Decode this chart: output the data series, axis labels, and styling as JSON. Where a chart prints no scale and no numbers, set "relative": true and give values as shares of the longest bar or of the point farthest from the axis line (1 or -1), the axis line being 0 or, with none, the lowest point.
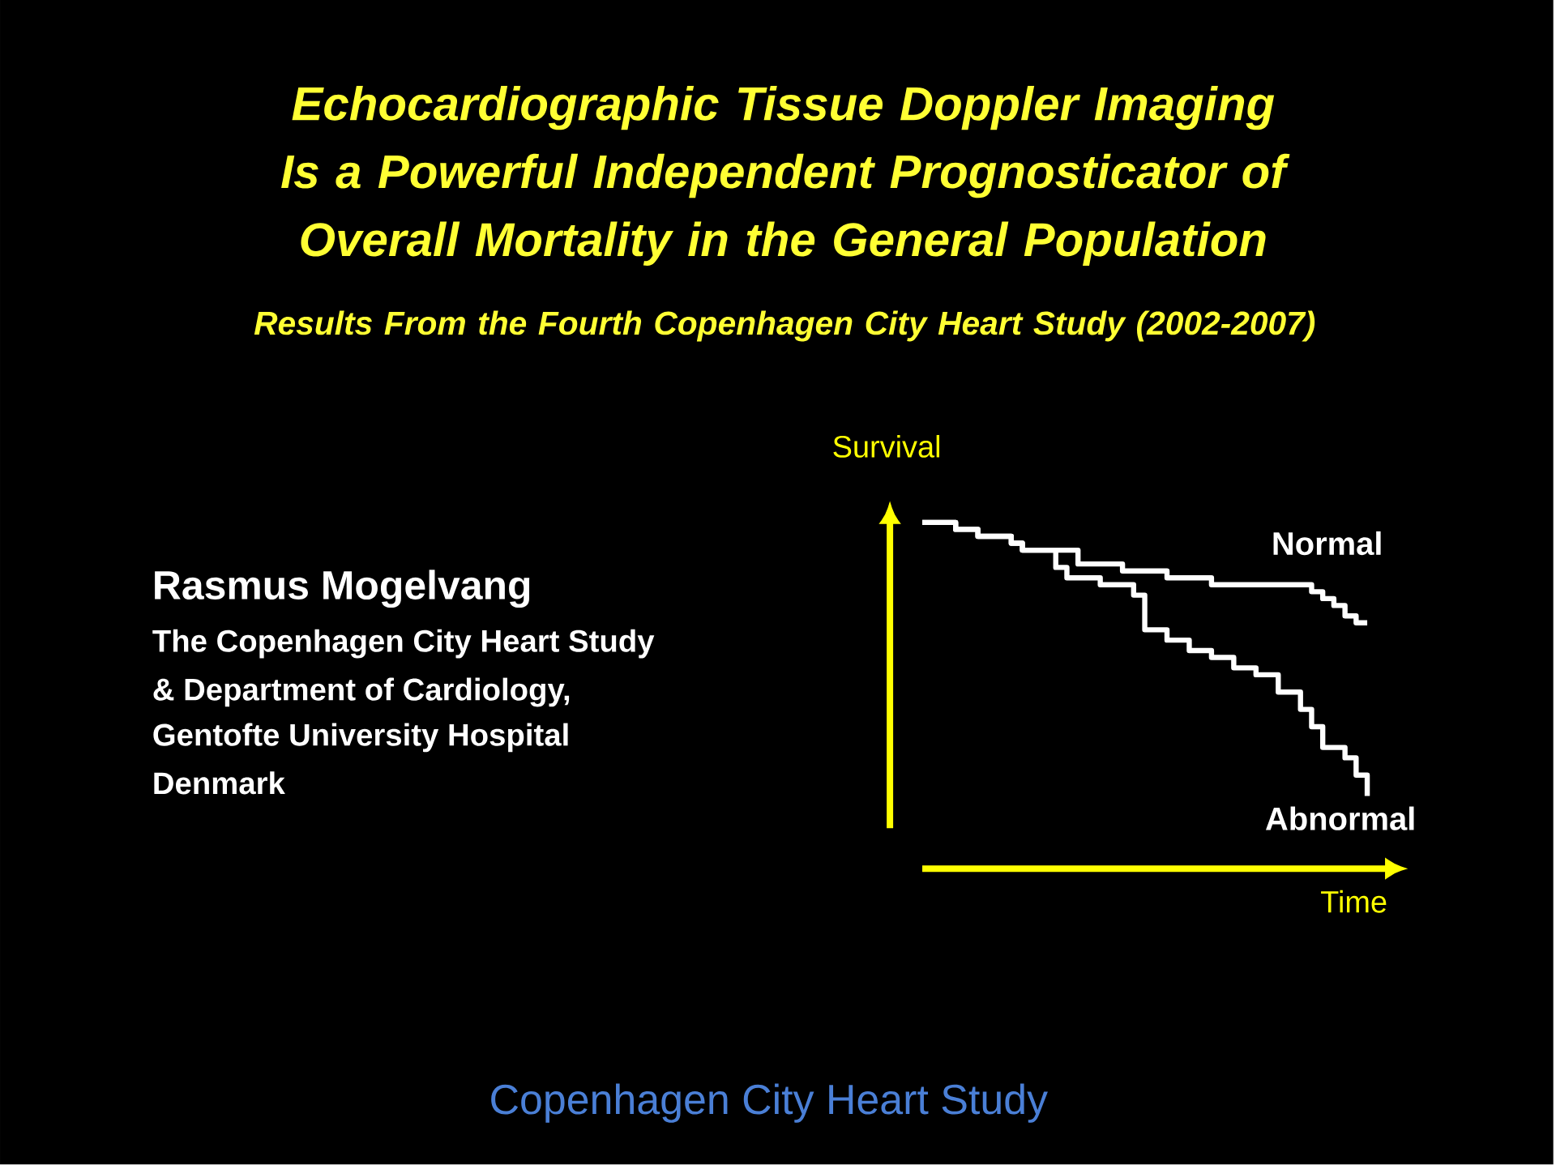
{
  "chart_data": {
    "type": "step",
    "relative": true,
    "title": "Echocardiographic Tissue Doppler Imaging Is a Powerful Independent Prognosticator of Overall Mortality in the General Population",
    "subtitle": "Results From the Fourth Copenhagen City Heart Study (2002-2007)",
    "xlabel": "Time",
    "ylabel": "Survival",
    "categories": [
      null,
      null,
      null,
      null,
      null,
      null,
      null,
      null,
      null,
      null,
      null,
      null,
      null,
      null,
      null,
      null,
      null,
      null,
      null,
      null,
      null,
      null,
      null,
      null,
      null,
      null,
      null,
      null,
      null,
      null,
      null,
      null,
      null,
      null,
      null,
      null,
      null,
      null,
      null,
      null,
      null
    ],
    "series": [
      {
        "name": "Normal",
        "color": "#ffffff",
        "values": [
          1,
          1,
          1,
          0.98,
          0.98,
          0.96,
          0.96,
          0.96,
          0.94,
          0.92,
          0.92,
          0.92,
          0.92,
          0.92,
          0.88,
          0.88,
          0.88,
          0.88,
          0.86,
          0.86,
          0.86,
          0.86,
          0.84,
          0.84,
          0.84,
          0.84,
          0.82,
          0.82,
          0.82,
          0.82,
          0.82,
          0.82,
          0.82,
          0.82,
          0.82,
          0.8,
          0.78,
          0.76,
          0.73,
          0.71,
          0.71
        ]
      },
      {
        "name": "Abnormal",
        "color": "#ffffff",
        "values": [
          1,
          1,
          1,
          0.98,
          0.98,
          0.96,
          0.96,
          0.96,
          0.94,
          0.92,
          0.92,
          0.92,
          0.87,
          0.84,
          0.84,
          0.84,
          0.82,
          0.82,
          0.82,
          0.79,
          0.69,
          0.69,
          0.66,
          0.66,
          0.63,
          0.63,
          0.61,
          0.61,
          0.58,
          0.58,
          0.56,
          0.56,
          0.51,
          0.51,
          0.46,
          0.41,
          0.35,
          0.35,
          0.32,
          0.27,
          0.21
        ]
      }
    ],
    "annotations": [
      "Rasmus Mogelvang",
      "The Copenhagen City Heart Study",
      "& Department of Cardiology,",
      "Gentofte University Hospital",
      "Denmark",
      "Copenhagen City Heart Study"
    ]
  }
}
